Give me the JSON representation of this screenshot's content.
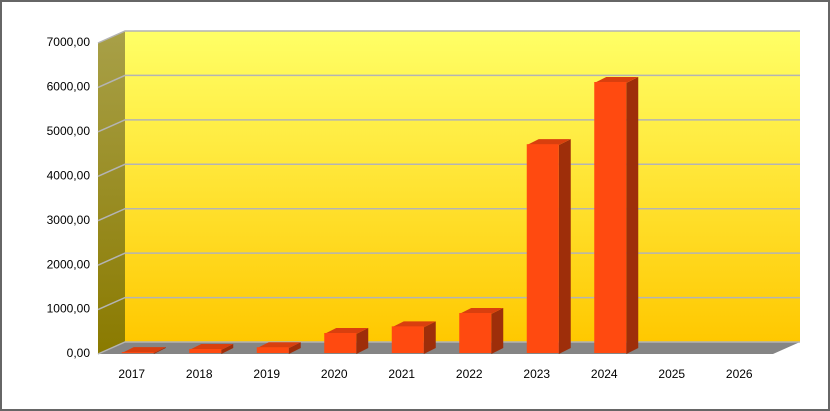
{
  "chart_data": {
    "type": "bar3d",
    "categories": [
      "2017",
      "2018",
      "2019",
      "2020",
      "2021",
      "2022",
      "2023",
      "2024",
      "2025",
      "2026"
    ],
    "values": [
      20,
      90,
      130,
      450,
      600,
      900,
      4700,
      6100,
      0,
      0
    ],
    "color": "#ff4a10",
    "ylim": [
      0,
      7000
    ],
    "yticks": [
      {
        "value": 0,
        "label": "0,00"
      },
      {
        "value": 1000,
        "label": "1000,00"
      },
      {
        "value": 2000,
        "label": "2000,00"
      },
      {
        "value": 3000,
        "label": "3000,00"
      },
      {
        "value": 4000,
        "label": "4000,00"
      },
      {
        "value": 5000,
        "label": "5000,00"
      },
      {
        "value": 6000,
        "label": "6000,00"
      },
      {
        "value": 7000,
        "label": "7000,00"
      }
    ],
    "grid": true
  }
}
